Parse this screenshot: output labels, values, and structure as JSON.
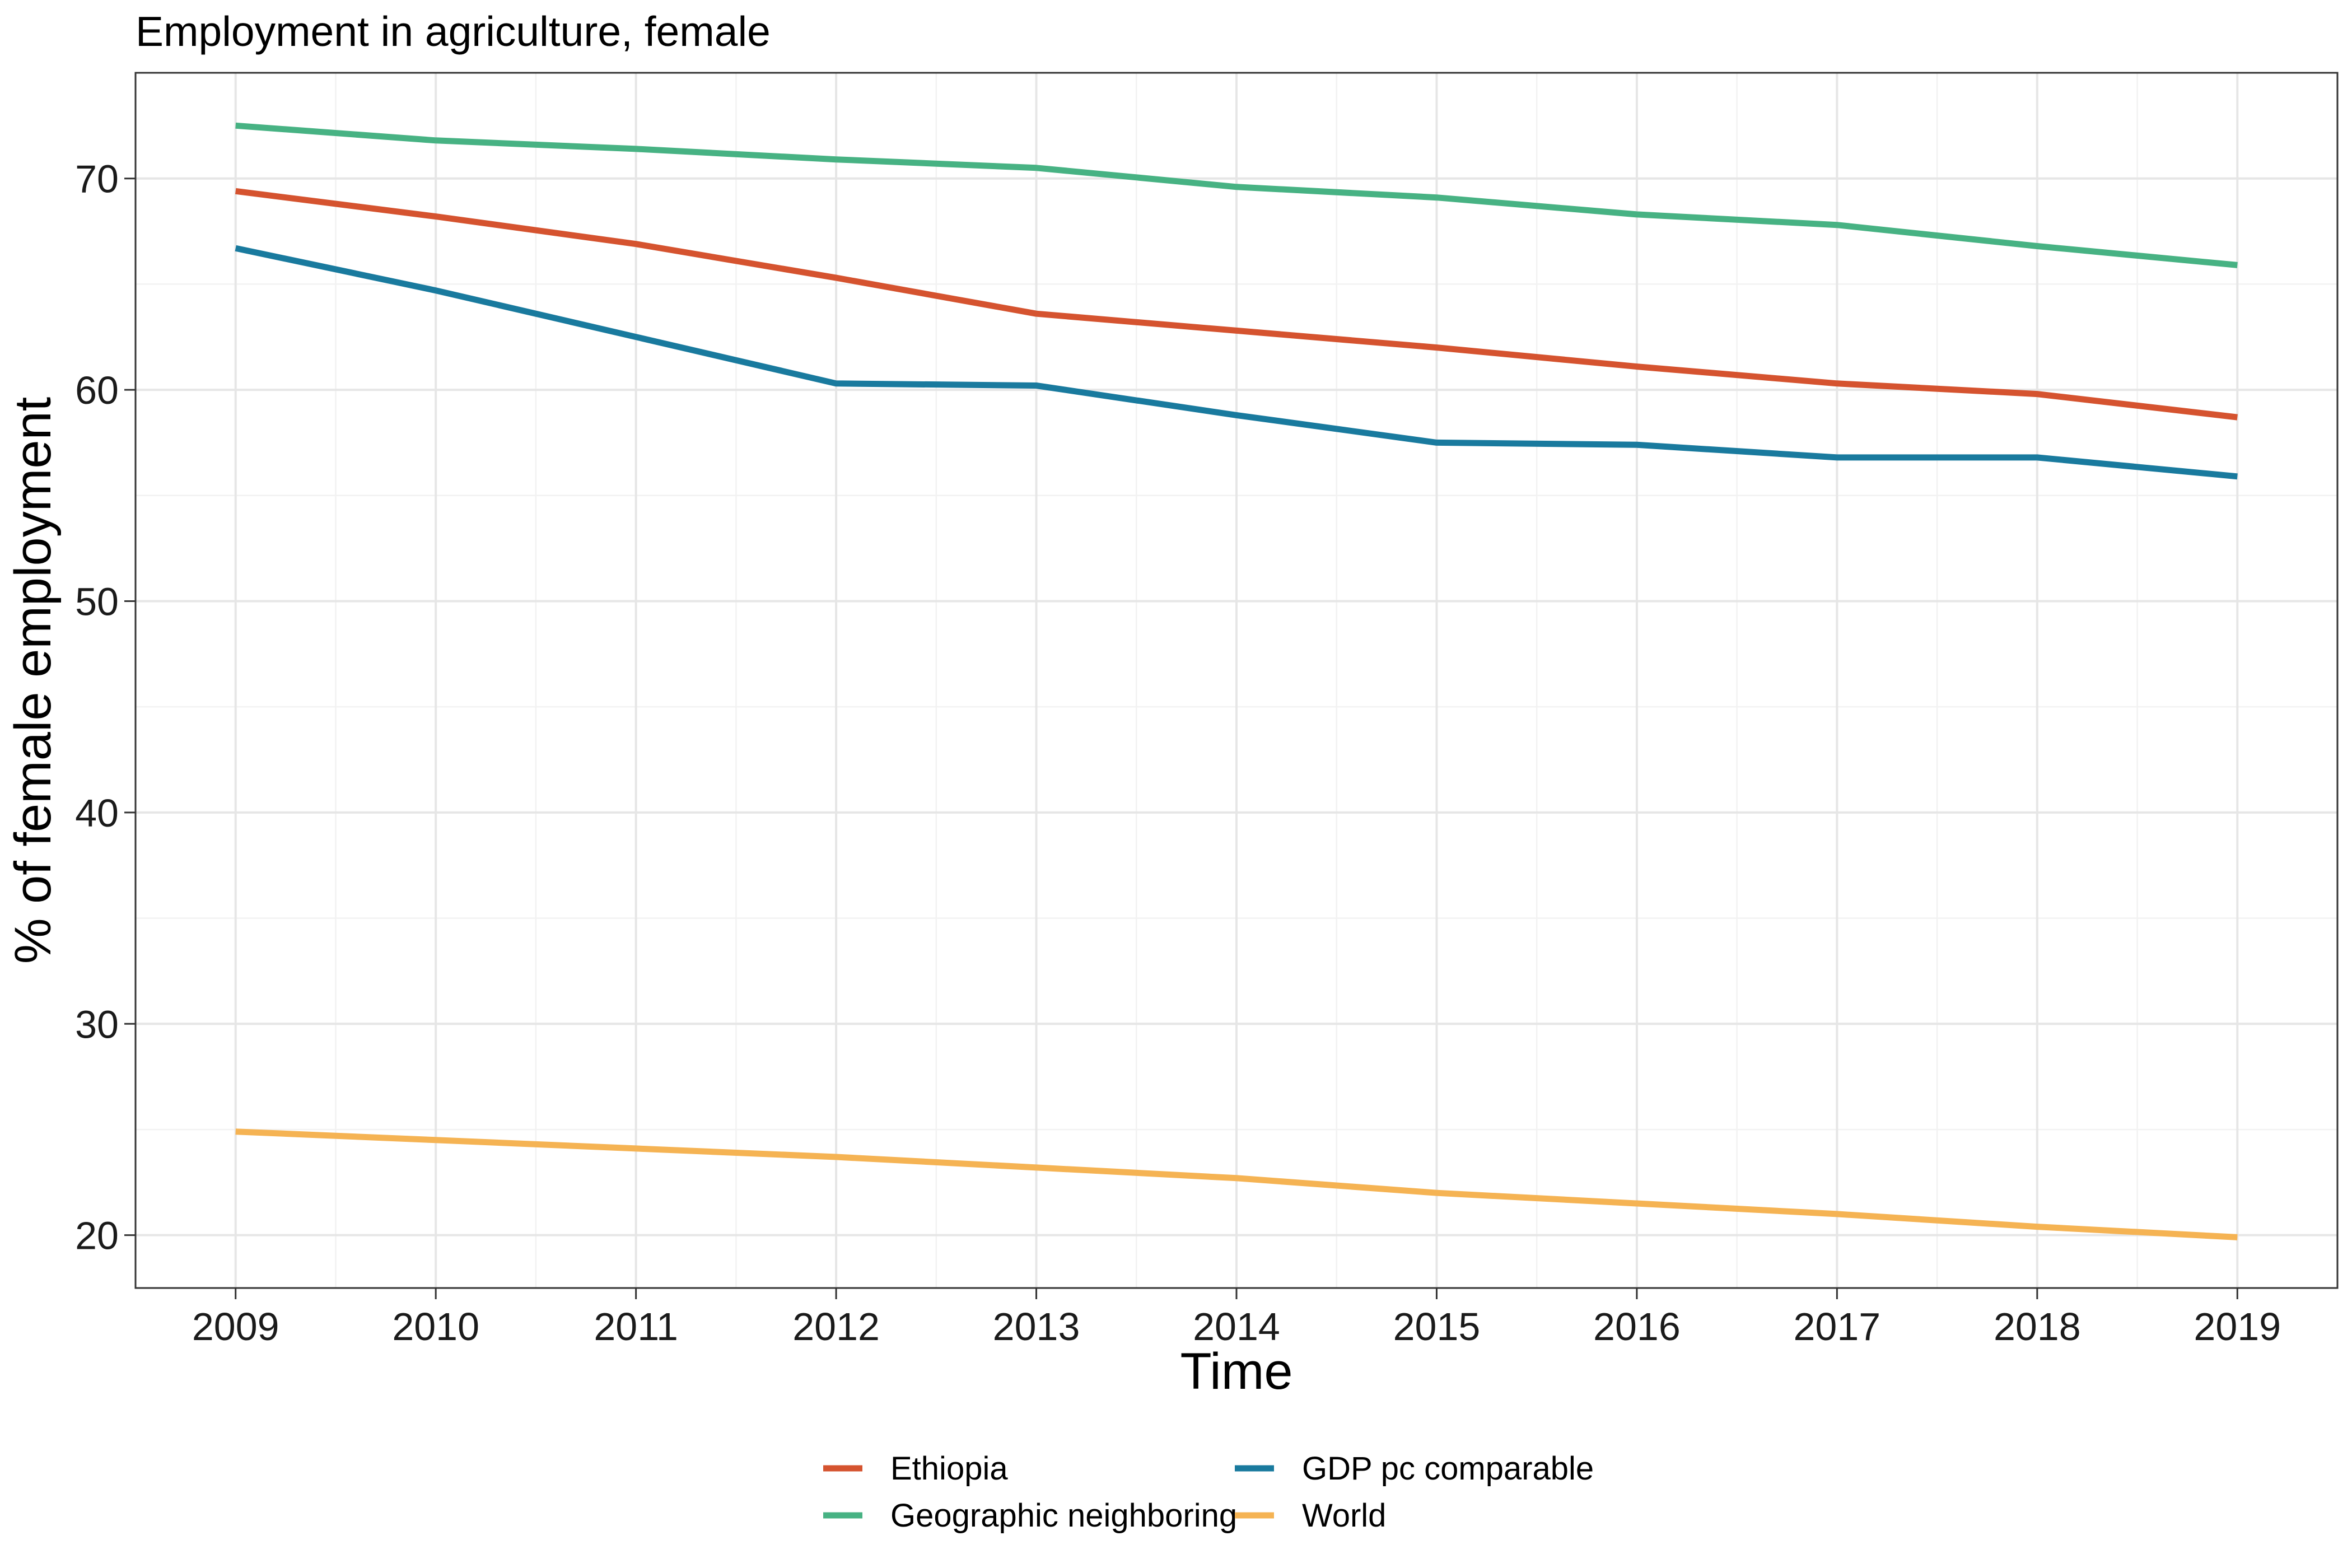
{
  "chart_data": {
    "type": "line",
    "title": "Employment in agriculture, female",
    "xlabel": "Time",
    "ylabel": "% of female employment",
    "x": [
      2009,
      2010,
      2011,
      2012,
      2013,
      2014,
      2015,
      2016,
      2017,
      2018,
      2019
    ],
    "x_tick_labels": [
      "2009",
      "2010",
      "2011",
      "2012",
      "2013",
      "2014",
      "2015",
      "2016",
      "2017",
      "2018",
      "2019"
    ],
    "y_ticks": [
      20,
      30,
      40,
      50,
      60,
      70
    ],
    "y_tick_labels": [
      "20",
      "30",
      "40",
      "50",
      "60",
      "70"
    ],
    "xlim": [
      2008.5,
      2019.5
    ],
    "ylim": [
      17.5,
      75
    ],
    "grid": true,
    "legend_position": "bottom",
    "series": [
      {
        "name": "Ethiopia",
        "color": "#D5532F",
        "values": [
          69.4,
          68.2,
          66.9,
          65.3,
          63.6,
          62.8,
          62.0,
          61.1,
          60.3,
          59.8,
          58.7
        ]
      },
      {
        "name": "GDP pc comparable",
        "color": "#197A9E",
        "values": [
          66.7,
          64.7,
          62.5,
          60.3,
          60.2,
          58.8,
          57.5,
          57.4,
          56.8,
          56.8,
          55.9
        ]
      },
      {
        "name": "Geographic neighboring",
        "color": "#47B283",
        "values": [
          72.5,
          71.8,
          71.4,
          70.9,
          70.5,
          69.6,
          69.1,
          68.3,
          67.8,
          66.8,
          65.9
        ]
      },
      {
        "name": "World",
        "color": "#F5B353",
        "values": [
          24.9,
          24.5,
          24.1,
          23.7,
          23.2,
          22.7,
          22.0,
          21.5,
          21.0,
          20.4,
          19.9
        ]
      }
    ],
    "legend_order": [
      0,
      2,
      1,
      3
    ]
  }
}
